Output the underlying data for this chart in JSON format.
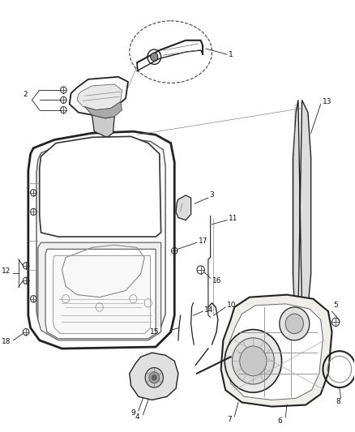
{
  "background_color": "#ffffff",
  "fig_width": 4.38,
  "fig_height": 5.33,
  "dpi": 100,
  "line_color": "#222222",
  "label_color": "#111111",
  "lw_heavy": 2.0,
  "lw_medium": 1.2,
  "lw_light": 0.7,
  "lw_thin": 0.5,
  "font_size": 6.5,
  "part1_label": "1",
  "part2_label": "2",
  "part3_label": "3",
  "part4_label": "4",
  "part5_label": "5",
  "part6_label": "6",
  "part7_label": "7",
  "part8_label": "8",
  "part9_label": "9",
  "part10_label": "10",
  "part11_label": "11",
  "part12_label": "12",
  "part13_label": "13",
  "part14_label": "14",
  "part15_label": "15",
  "part16_label": "16",
  "part17_label": "17",
  "part18_label": "18"
}
